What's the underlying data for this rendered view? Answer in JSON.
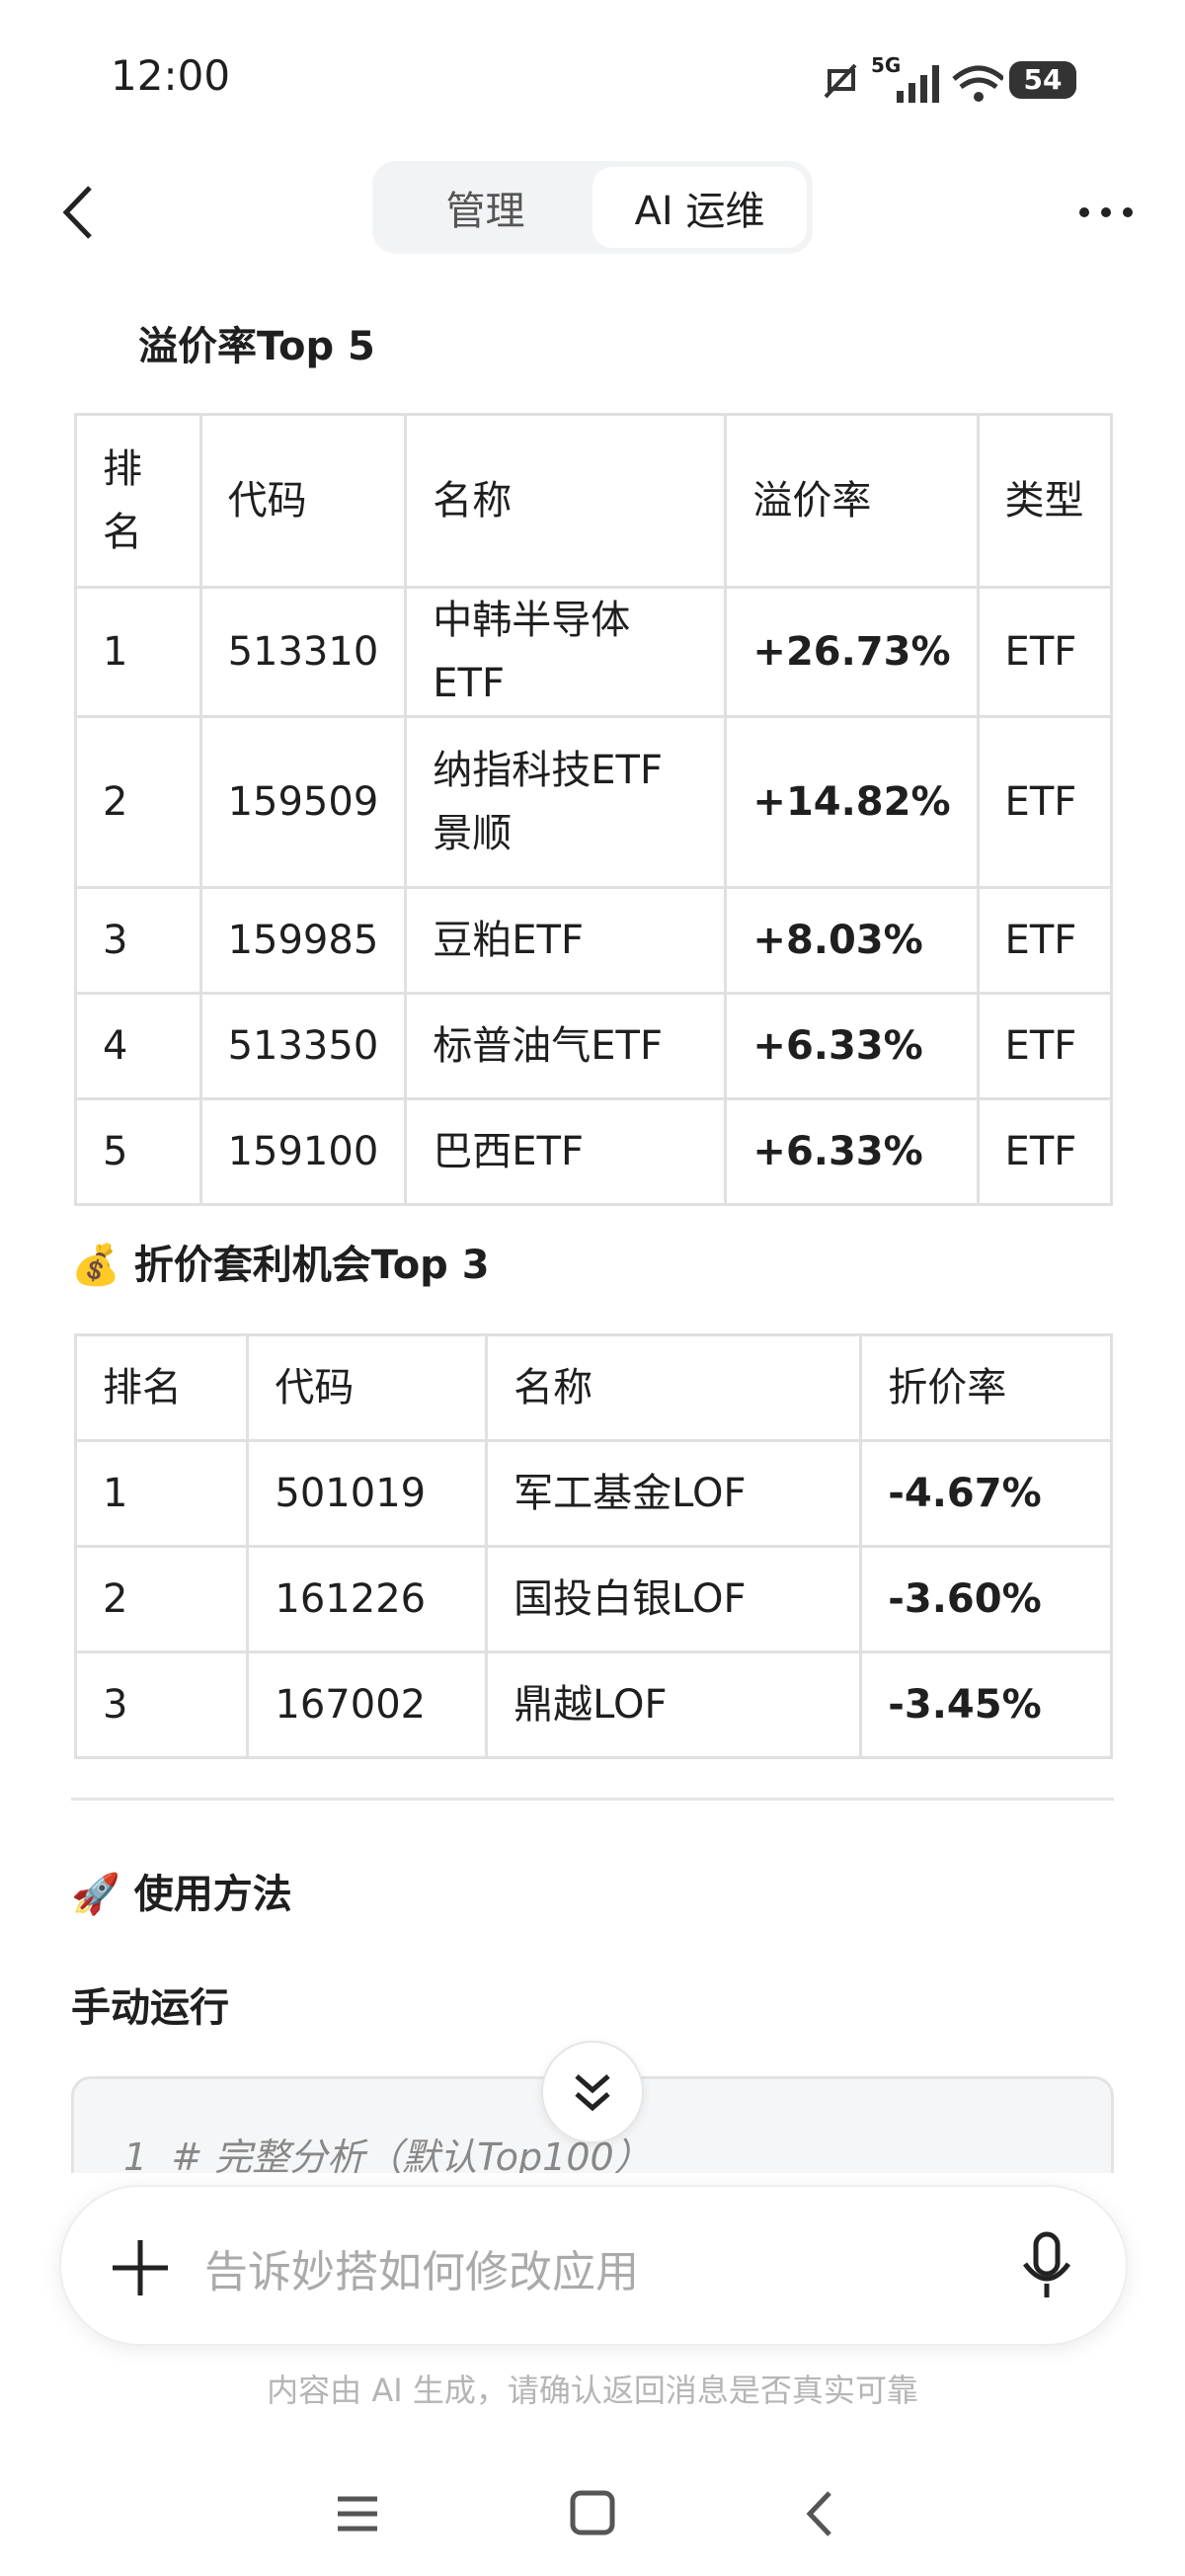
{
  "status_bar": {
    "time": "12:00",
    "network": "5G",
    "battery": "54"
  },
  "header": {
    "tabs": [
      "管理",
      "AI 运维"
    ]
  },
  "premium": {
    "heading": "溢价率Top 5",
    "table": {
      "headers": [
        "排名",
        "代码",
        "名称",
        "溢价率",
        "类型"
      ],
      "rows": [
        [
          "1",
          "513310",
          "中韩半导体ETF",
          "+26.73%",
          "ETF"
        ],
        [
          "2",
          "159509",
          "纳指科技ETF景顺",
          "+14.82%",
          "ETF"
        ],
        [
          "3",
          "159985",
          "豆粕ETF",
          "+8.03%",
          "ETF"
        ],
        [
          "4",
          "513350",
          "标普油气ETF",
          "+6.33%",
          "ETF"
        ],
        [
          "5",
          "159100",
          "巴西ETF",
          "+6.33%",
          "ETF"
        ]
      ]
    }
  },
  "discount": {
    "heading": "💰 折价套利机会Top 3",
    "table": {
      "headers": [
        "排名",
        "代码",
        "名称",
        "折价率"
      ],
      "rows": [
        [
          "1",
          "501019",
          "军工基金LOF",
          "-4.67%"
        ],
        [
          "2",
          "161226",
          "国投白银LOF",
          "-3.60%"
        ],
        [
          "3",
          "167002",
          "鼎越LOF",
          "-3.45%"
        ]
      ]
    }
  },
  "usage": {
    "heading": "🚀 使用方法",
    "subheading": "手动运行",
    "code": {
      "line_number": "1",
      "text": "# 完整分析（默认Top100）"
    }
  },
  "input": {
    "placeholder": "告诉妙搭如何修改应用"
  },
  "disclaimer": "内容由 AI 生成，请确认返回消息是否真实可靠"
}
